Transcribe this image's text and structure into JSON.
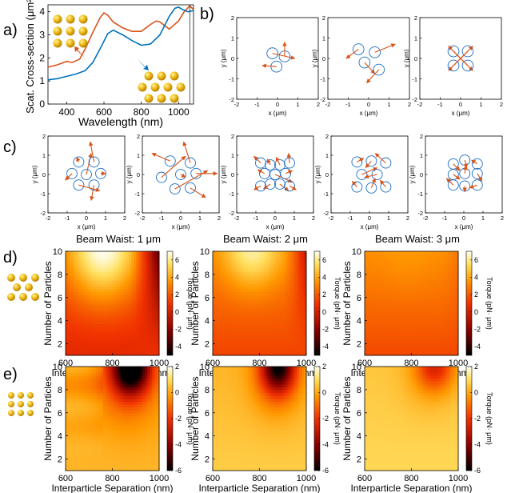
{
  "colors": {
    "orange": "#d95319",
    "blue": "#0072bd",
    "gold": "#e8b30a",
    "gold_light": "#fce27a",
    "circle": "#1f6fc4"
  },
  "panel_letters": {
    "a": "a)",
    "b": "b)",
    "c": "c)",
    "d": "d)",
    "e": "e)"
  },
  "chart_data": [
    {
      "id": "a",
      "type": "line",
      "xlabel": "Wavelength (nm)",
      "ylabel": "Scat. Cross-section (μm²)",
      "xlim": [
        300,
        1080
      ],
      "ylim": [
        0,
        4.3
      ],
      "xticks": [
        "400",
        "600",
        "800",
        "1000"
      ],
      "yticks": [
        "0",
        "1",
        "2",
        "3",
        "4"
      ],
      "vline_x": 1060,
      "series": [
        {
          "name": "hexagonal cluster",
          "color": "#d95319",
          "x": [
            300,
            350,
            400,
            430,
            470,
            500,
            540,
            580,
            600,
            620,
            650,
            700,
            750,
            800,
            850,
            880,
            900,
            950,
            1000,
            1030,
            1060,
            1080
          ],
          "y": [
            1.6,
            1.7,
            1.85,
            1.8,
            1.95,
            2.4,
            3.1,
            3.75,
            3.95,
            3.85,
            3.55,
            3.3,
            3.15,
            3.15,
            3.45,
            3.6,
            3.55,
            3.25,
            3.6,
            4.0,
            4.25,
            4.1
          ]
        },
        {
          "name": "square lattice",
          "color": "#0072bd",
          "x": [
            300,
            350,
            400,
            450,
            500,
            540,
            580,
            620,
            650,
            700,
            750,
            800,
            850,
            900,
            950,
            980,
            1000,
            1020,
            1050,
            1080
          ],
          "y": [
            1.05,
            1.1,
            1.2,
            1.3,
            1.45,
            1.8,
            2.4,
            3.05,
            3.2,
            3.0,
            2.75,
            2.55,
            2.6,
            3.0,
            3.8,
            4.15,
            4.2,
            4.1,
            4.0,
            4.05
          ]
        }
      ]
    },
    {
      "id": "b",
      "type": "scatter",
      "xlabel": "x (μm)",
      "ylabel": "y (μm)",
      "xlim": [
        -2,
        2
      ],
      "ylim": [
        -2,
        2
      ],
      "ticks": [
        "-2",
        "-1",
        "0",
        "1",
        "2"
      ],
      "plots": [
        {
          "particles": [
            [
              -0.25,
              0.25,
              0.85,
              0
            ],
            [
              0.35,
              0.1,
              0.35,
              0.8
            ],
            [
              -0.05,
              -0.4,
              -0.75,
              -0.35
            ]
          ]
        },
        {
          "particles": [
            [
              -0.5,
              0.45,
              -1.1,
              0
            ],
            [
              0.3,
              0.3,
              1.3,
              0.7
            ],
            [
              -0.2,
              -0.2,
              0.3,
              -0.75
            ],
            [
              0.5,
              -0.55,
              -0.1,
              -1.2
            ]
          ]
        },
        {
          "particles": [
            [
              -0.35,
              0.35,
              0.6,
              -0.6
            ],
            [
              0.35,
              0.35,
              -0.6,
              -0.6
            ],
            [
              -0.35,
              -0.35,
              0.6,
              0.6
            ],
            [
              0.35,
              -0.35,
              -0.6,
              0.6
            ]
          ]
        }
      ]
    },
    {
      "id": "c",
      "type": "scatter",
      "xlabel": "x (μm)",
      "ylabel": "y (μm)",
      "xlim": [
        -2,
        2
      ],
      "ylim": [
        -2,
        2
      ],
      "ticks": [
        "-2",
        "-1",
        "0",
        "1",
        "2"
      ],
      "plots": [
        {
          "particles": [
            [
              0,
              0,
              0.25,
              1.1
            ],
            [
              0.75,
              0.05,
              1.0,
              0.05
            ],
            [
              0.4,
              -0.55,
              0.25,
              -1.35
            ],
            [
              -0.4,
              -0.55,
              0.7,
              -0.85
            ],
            [
              -0.75,
              0.05,
              -1.1,
              -0.3
            ],
            [
              -0.4,
              0.65,
              -0.5,
              0.9
            ],
            [
              0.4,
              0.65,
              0.2,
              1.7
            ]
          ]
        },
        {
          "particles": [
            [
              0,
              0,
              0.25,
              -0.15
            ],
            [
              0.8,
              0.05,
              1.9,
              0.05
            ],
            [
              0.5,
              -0.7,
              1.3,
              -1.2
            ],
            [
              -0.3,
              -0.75,
              1.4,
              0.2
            ],
            [
              -1.0,
              -0.15,
              0.25,
              0.95
            ],
            [
              -0.55,
              0.7,
              -1.5,
              1.1
            ],
            [
              0.5,
              0.6,
              0.15,
              1.7
            ]
          ]
        },
        {
          "particles": [
            [
              0,
              0,
              0.9,
              -0.4
            ],
            [
              0.55,
              0.05,
              0.9,
              0.2
            ],
            [
              -0.55,
              0.05,
              -0.9,
              0.25
            ],
            [
              -0.25,
              0.5,
              -0.4,
              0.8
            ],
            [
              0.25,
              0.5,
              0.05,
              0.9
            ],
            [
              -0.25,
              -0.5,
              -0.6,
              -0.75
            ],
            [
              0.25,
              -0.5,
              0.7,
              -0.85
            ],
            [
              -0.75,
              -0.6,
              -1.1,
              -0.8
            ],
            [
              0.75,
              -0.6,
              1.1,
              -0.8
            ],
            [
              -0.75,
              0.6,
              -1.1,
              0.95
            ],
            [
              0.75,
              0.6,
              0.7,
              1.1
            ]
          ]
        },
        {
          "particles": [
            [
              -0.4,
              0,
              0.4,
              0.35
            ],
            [
              0.4,
              0,
              -0.25,
              -0.15
            ],
            [
              -0.65,
              0.65,
              -0.3,
              0.85
            ],
            [
              0.1,
              0.7,
              -0.2,
              0.35
            ],
            [
              0.85,
              0.6,
              0.3,
              1.1
            ],
            [
              -0.65,
              -0.65,
              -0.9,
              -0.35
            ],
            [
              0.1,
              -0.7,
              0.3,
              -0.2
            ],
            [
              0.85,
              -0.65,
              0.55,
              -0.3
            ]
          ]
        },
        {
          "particles": [
            [
              -0.55,
              0.55,
              -0.2,
              0.2
            ],
            [
              0.05,
              0.75,
              0.15,
              0.35
            ],
            [
              0.7,
              0.55,
              0.4,
              0.75
            ],
            [
              -0.55,
              0,
              -0.2,
              -0.25
            ],
            [
              0.05,
              0.05,
              0.1,
              0.45
            ],
            [
              0.7,
              0.05,
              0.95,
              -0.35
            ],
            [
              -0.55,
              -0.55,
              -0.9,
              -0.2
            ],
            [
              0.05,
              -0.6,
              0.05,
              -0.9
            ],
            [
              0.7,
              -0.55,
              0.3,
              -0.7
            ]
          ]
        }
      ]
    },
    {
      "id": "d",
      "type": "heatmap",
      "xlabel": "Interparticle Separation (nm)",
      "ylabel": "Number of Particles",
      "colorbar_label": "Torque (pN· μm)",
      "xlim": [
        600,
        1000
      ],
      "ylim": [
        1,
        10
      ],
      "xticks": [
        "600",
        "800",
        "1000"
      ],
      "yticks": [
        "2",
        "4",
        "6",
        "8",
        "10"
      ],
      "cbar_range": [
        -5,
        7
      ],
      "cbar_ticks": [
        "6",
        "4",
        "2",
        "0",
        "-2",
        "-4"
      ],
      "titles": [
        "Beam Waist: 1 μm",
        "Beam Waist: 2 μm",
        "Beam Waist: 3 μm"
      ]
    },
    {
      "id": "e",
      "type": "heatmap",
      "xlabel": "Interparticle Separation (nm)",
      "ylabel": "Number of Particles",
      "colorbar_label": "Torque (pN· μm)",
      "xlim": [
        600,
        1000
      ],
      "ylim": [
        1,
        10
      ],
      "xticks": [
        "600",
        "800",
        "1000"
      ],
      "yticks": [
        "2",
        "4",
        "6",
        "8",
        "10"
      ],
      "cbar_range": [
        -6,
        2
      ],
      "cbar_ticks": [
        "2",
        "0",
        "-2",
        "-4",
        "-6"
      ]
    }
  ]
}
